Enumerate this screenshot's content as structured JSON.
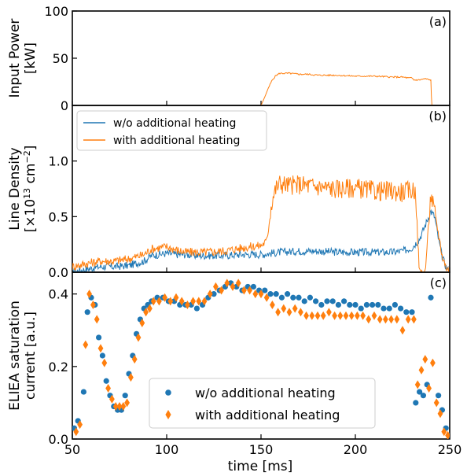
{
  "x_axis": {
    "label": "time [ms]",
    "ticks": [
      "50",
      "100",
      "150",
      "200",
      "250"
    ]
  },
  "colors": {
    "without_heating": "#1f77b4",
    "with_heating": "#ff7f0e"
  },
  "chart_data": [
    {
      "panel_label": "(a)",
      "type": "line",
      "ylabel": [
        "Input Power",
        "[kW]"
      ],
      "xlim": [
        50,
        250
      ],
      "ylim": [
        0,
        100
      ],
      "yticks": [
        "0",
        "50",
        "100"
      ],
      "series": [
        {
          "key": "with_heating",
          "x": [
            150,
            152,
            154,
            156,
            158,
            160,
            165,
            170,
            175,
            180,
            190,
            200,
            210,
            220,
            225,
            228,
            230,
            231,
            234,
            236,
            238,
            239,
            240,
            240.3,
            240.6
          ],
          "y": [
            0,
            9,
            19,
            27,
            32,
            34,
            34,
            33,
            33,
            32,
            32,
            31,
            31,
            30,
            30,
            29,
            29,
            27,
            27,
            28,
            28,
            27,
            27,
            10,
            0
          ]
        }
      ]
    },
    {
      "panel_label": "(b)",
      "type": "line",
      "ylabel": [
        "Line Density",
        "[×10",
        "13",
        " cm",
        "−2",
        "]"
      ],
      "xlim": [
        50,
        250
      ],
      "ylim": [
        0,
        1.5
      ],
      "yticks": [
        "0.0",
        "0.5",
        "1.0"
      ],
      "legend": {
        "position": "top-left",
        "entries": [
          "w/o additional heating",
          "with additional heating"
        ]
      },
      "series": [
        {
          "key": "without_heating",
          "x": [
            50,
            58,
            65,
            72,
            80,
            88,
            92,
            96,
            100,
            105,
            110,
            115,
            120,
            130,
            140,
            150,
            160,
            170,
            180,
            190,
            200,
            210,
            215,
            220,
            225,
            230,
            234,
            237,
            240,
            242,
            244,
            246,
            248,
            250
          ],
          "y": [
            0.0,
            0.03,
            0.05,
            0.05,
            0.06,
            0.1,
            0.15,
            0.16,
            0.17,
            0.16,
            0.16,
            0.15,
            0.15,
            0.15,
            0.16,
            0.16,
            0.18,
            0.19,
            0.19,
            0.18,
            0.18,
            0.18,
            0.18,
            0.18,
            0.19,
            0.22,
            0.3,
            0.42,
            0.55,
            0.5,
            0.3,
            0.14,
            0.05,
            0.0
          ]
        },
        {
          "key": "with_heating",
          "x": [
            50,
            58,
            65,
            72,
            80,
            88,
            92,
            96,
            100,
            105,
            110,
            115,
            120,
            130,
            140,
            150,
            153,
            154,
            155,
            156,
            158,
            160,
            165,
            170,
            180,
            190,
            200,
            210,
            220,
            225,
            230,
            232,
            233,
            234,
            237,
            240,
            243,
            246,
            248,
            250
          ],
          "y": [
            0.05,
            0.08,
            0.1,
            0.1,
            0.12,
            0.16,
            0.21,
            0.22,
            0.23,
            0.2,
            0.18,
            0.18,
            0.18,
            0.19,
            0.22,
            0.24,
            0.28,
            0.4,
            0.55,
            0.66,
            0.76,
            0.8,
            0.78,
            0.79,
            0.77,
            0.75,
            0.76,
            0.73,
            0.73,
            0.72,
            0.74,
            0.73,
            0.3,
            0.0,
            0.0,
            0.7,
            0.45,
            0.15,
            0.05,
            0.0
          ]
        }
      ]
    },
    {
      "panel_label": "(c)",
      "type": "scatter",
      "ylabel": [
        "ELIEA saturation",
        "current [a.u.]"
      ],
      "xlim": [
        50,
        250
      ],
      "ylim": [
        0,
        0.46
      ],
      "yticks": [
        "0.0",
        "0.2",
        "0.4"
      ],
      "legend": {
        "position": "bottom-center",
        "entries": [
          "w/o additional heating",
          "with additional heating"
        ]
      },
      "series": [
        {
          "key": "without_heating",
          "marker": "circle",
          "x": [
            51,
            53,
            56,
            58,
            60,
            62,
            64,
            66,
            68,
            70,
            72,
            74,
            76,
            78,
            80,
            82,
            84,
            86,
            88,
            90,
            92,
            95,
            98,
            101,
            104,
            107,
            110,
            113,
            116,
            119,
            122,
            125,
            128,
            131,
            134,
            137,
            140,
            143,
            146,
            149,
            152,
            155,
            158,
            161,
            164,
            167,
            170,
            173,
            176,
            179,
            182,
            185,
            188,
            191,
            194,
            197,
            200,
            203,
            206,
            209,
            212,
            215,
            218,
            221,
            224,
            227,
            230,
            232,
            234,
            236,
            238,
            240,
            244,
            246,
            248,
            250
          ],
          "y": [
            0.03,
            0.05,
            0.13,
            0.35,
            0.39,
            0.37,
            0.28,
            0.23,
            0.16,
            0.12,
            0.09,
            0.08,
            0.08,
            0.12,
            0.18,
            0.23,
            0.29,
            0.33,
            0.36,
            0.37,
            0.38,
            0.39,
            0.39,
            0.38,
            0.38,
            0.37,
            0.37,
            0.37,
            0.36,
            0.37,
            0.39,
            0.4,
            0.41,
            0.42,
            0.43,
            0.42,
            0.41,
            0.42,
            0.42,
            0.41,
            0.41,
            0.4,
            0.4,
            0.39,
            0.4,
            0.39,
            0.39,
            0.38,
            0.39,
            0.38,
            0.37,
            0.38,
            0.38,
            0.37,
            0.38,
            0.37,
            0.37,
            0.36,
            0.37,
            0.37,
            0.37,
            0.36,
            0.36,
            0.37,
            0.36,
            0.35,
            0.35,
            0.1,
            0.13,
            0.12,
            0.15,
            0.39,
            0.12,
            0.08,
            0.03,
            0.01
          ]
        },
        {
          "key": "with_heating",
          "marker": "diamond",
          "x": [
            52,
            54,
            57,
            59,
            61,
            63,
            65,
            67,
            69,
            71,
            73,
            75,
            77,
            79,
            81,
            83,
            85,
            87,
            89,
            91,
            93,
            96,
            99,
            102,
            105,
            108,
            111,
            114,
            117,
            120,
            123,
            126,
            129,
            132,
            135,
            138,
            141,
            144,
            147,
            150,
            153,
            156,
            159,
            162,
            165,
            168,
            171,
            174,
            177,
            180,
            183,
            186,
            189,
            192,
            195,
            198,
            201,
            204,
            207,
            210,
            213,
            216,
            219,
            222,
            225,
            228,
            231,
            233,
            235,
            237,
            239,
            241,
            243,
            245,
            247,
            249
          ],
          "y": [
            0.02,
            0.04,
            0.26,
            0.4,
            0.37,
            0.33,
            0.25,
            0.21,
            0.14,
            0.11,
            0.09,
            0.09,
            0.09,
            0.1,
            0.17,
            0.22,
            0.28,
            0.32,
            0.35,
            0.36,
            0.38,
            0.38,
            0.39,
            0.38,
            0.39,
            0.38,
            0.37,
            0.38,
            0.38,
            0.38,
            0.4,
            0.42,
            0.41,
            0.43,
            0.42,
            0.43,
            0.41,
            0.41,
            0.4,
            0.4,
            0.39,
            0.37,
            0.35,
            0.36,
            0.35,
            0.36,
            0.35,
            0.34,
            0.34,
            0.34,
            0.34,
            0.35,
            0.34,
            0.34,
            0.34,
            0.34,
            0.34,
            0.34,
            0.33,
            0.34,
            0.33,
            0.33,
            0.33,
            0.33,
            0.3,
            0.33,
            0.33,
            0.15,
            0.19,
            0.22,
            0.14,
            0.21,
            0.1,
            0.07,
            0.02,
            0.01
          ]
        }
      ]
    }
  ]
}
